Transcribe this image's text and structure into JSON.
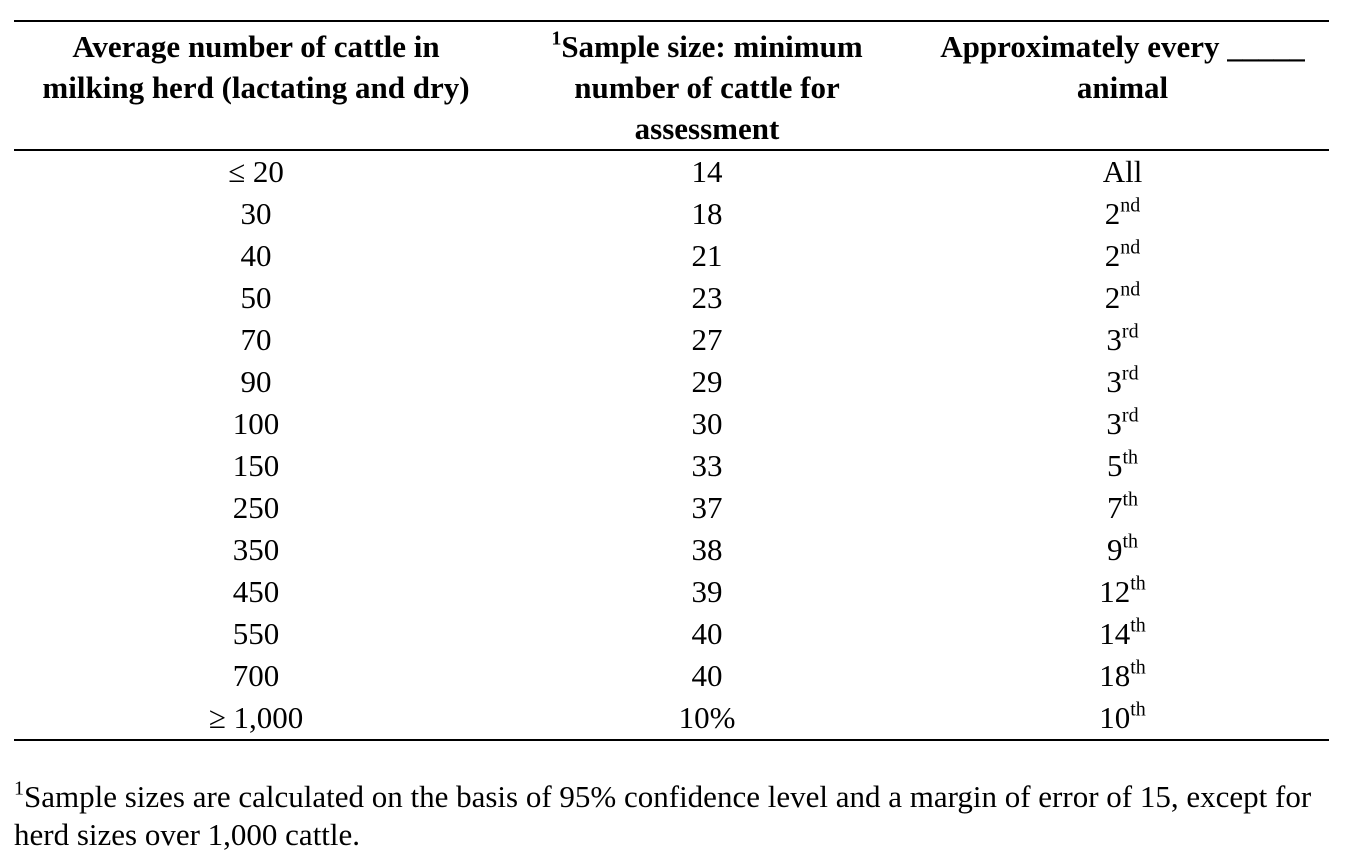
{
  "table": {
    "headers": [
      {
        "text": "Average number of cattle in milking herd (lactating and dry)",
        "sup": ""
      },
      {
        "text": "Sample size: minimum number of cattle for assessment",
        "sup": "1"
      },
      {
        "text": "Approximately every _____ animal",
        "sup": ""
      }
    ],
    "rows": [
      {
        "herd": "≤ 20",
        "sample": "14",
        "every": "All",
        "every_sup": ""
      },
      {
        "herd": "30",
        "sample": "18",
        "every": "2",
        "every_sup": "nd"
      },
      {
        "herd": "40",
        "sample": "21",
        "every": "2",
        "every_sup": "nd"
      },
      {
        "herd": "50",
        "sample": "23",
        "every": "2",
        "every_sup": "nd"
      },
      {
        "herd": "70",
        "sample": "27",
        "every": "3",
        "every_sup": "rd"
      },
      {
        "herd": "90",
        "sample": "29",
        "every": "3",
        "every_sup": "rd"
      },
      {
        "herd": "100",
        "sample": "30",
        "every": "3",
        "every_sup": "rd"
      },
      {
        "herd": "150",
        "sample": "33",
        "every": "5",
        "every_sup": "th"
      },
      {
        "herd": "250",
        "sample": "37",
        "every": "7",
        "every_sup": "th"
      },
      {
        "herd": "350",
        "sample": "38",
        "every": "9",
        "every_sup": "th"
      },
      {
        "herd": "450",
        "sample": "39",
        "every": "12",
        "every_sup": "th"
      },
      {
        "herd": "550",
        "sample": "40",
        "every": "14",
        "every_sup": "th"
      },
      {
        "herd": "700",
        "sample": "40",
        "every": "18",
        "every_sup": "th"
      },
      {
        "herd": "≥ 1,000",
        "sample": "10%",
        "every": "10",
        "every_sup": "th"
      }
    ]
  },
  "footnote": {
    "sup": "1",
    "text": "Sample sizes are calculated on the basis of 95% confidence level and a margin of error of 15, except for herd sizes over 1,000 cattle."
  }
}
